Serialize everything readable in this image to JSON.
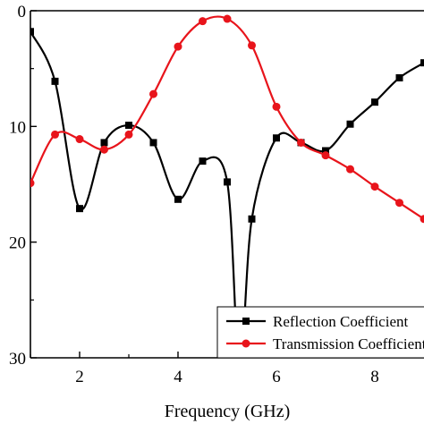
{
  "chart_data": {
    "type": "line",
    "title": "",
    "xlabel": "Frequency (GHz)",
    "ylabel": "",
    "xlim": [
      1,
      9
    ],
    "ylim": [
      0,
      30
    ],
    "y_inverted": true,
    "xticks": [
      2,
      4,
      6,
      8
    ],
    "yticks": [
      0,
      10,
      20,
      30
    ],
    "xtick_labels": [
      "2",
      "4",
      "6",
      "8"
    ],
    "ytick_labels": [
      "0",
      "10",
      "20",
      "30"
    ],
    "grid": false,
    "legend_position": "bottom-right",
    "series": [
      {
        "name": "Reflection Coefficient",
        "color": "#000000",
        "marker": "square",
        "x": [
          1.0,
          1.5,
          2.0,
          2.5,
          3.0,
          3.5,
          4.0,
          4.5,
          5.0,
          5.25,
          5.5,
          6.0,
          6.5,
          7.0,
          7.5,
          8.0,
          8.5,
          9.0
        ],
        "y": [
          1.8,
          6.1,
          17.1,
          11.4,
          9.9,
          11.4,
          16.3,
          13.0,
          14.8,
          31.0,
          18.0,
          11.0,
          11.4,
          12.1,
          9.8,
          7.9,
          5.8,
          4.5
        ]
      },
      {
        "name": "Transmission Coefficient",
        "color": "#e8141b",
        "marker": "circle",
        "x": [
          1.0,
          1.5,
          2.0,
          2.5,
          3.0,
          3.5,
          4.0,
          4.5,
          5.0,
          5.5,
          6.0,
          6.5,
          7.0,
          7.5,
          8.0,
          8.5,
          9.0
        ],
        "y": [
          14.9,
          10.7,
          11.1,
          12.0,
          10.7,
          7.2,
          3.1,
          0.9,
          0.7,
          3.0,
          8.3,
          11.4,
          12.5,
          13.7,
          15.2,
          16.6,
          18.0
        ]
      }
    ]
  }
}
